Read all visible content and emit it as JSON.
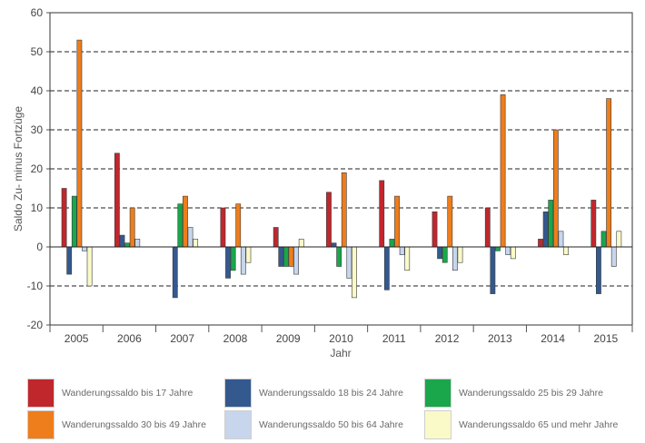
{
  "chart_data": {
    "type": "bar",
    "title": "",
    "xlabel": "Jahr",
    "ylabel": "Saldo Zu- minus Fortzüge",
    "ylim": [
      -20,
      60
    ],
    "yticks": [
      -20,
      -10,
      0,
      10,
      20,
      30,
      40,
      50,
      60
    ],
    "grid": "dashed horizontal",
    "legend_position": "bottom",
    "categories": [
      "2005",
      "2006",
      "2007",
      "2008",
      "2009",
      "2010",
      "2011",
      "2012",
      "2013",
      "2014",
      "2015"
    ],
    "series": [
      {
        "name": "Wanderungssaldo bis 17 Jahre",
        "color": "#c0272d",
        "values": [
          15,
          24,
          0,
          10,
          5,
          14,
          17,
          9,
          10,
          2,
          12
        ]
      },
      {
        "name": "Wanderungssaldo 18 bis 24 Jahre",
        "color": "#34598f",
        "values": [
          -7,
          3,
          -13,
          -8,
          -5,
          1,
          -11,
          -3,
          -12,
          9,
          -12
        ]
      },
      {
        "name": "Wanderungssaldo 25 bis 29 Jahre",
        "color": "#1aa64b",
        "values": [
          13,
          1,
          11,
          -6,
          -5,
          -5,
          2,
          -4,
          -1,
          12,
          4
        ]
      },
      {
        "name": "Wanderungssaldo 30 bis 49 Jahre",
        "color": "#ee7d1b",
        "values": [
          53,
          10,
          13,
          11,
          -5,
          19,
          13,
          13,
          39,
          30,
          38
        ]
      },
      {
        "name": "Wanderungssaldo 50 bis 64 Jahre",
        "color": "#c7d6ec",
        "values": [
          -1,
          2,
          5,
          -7,
          -7,
          -8,
          -2,
          -6,
          -2,
          4,
          -5
        ]
      },
      {
        "name": "Wanderungssaldo 65 und mehr Jahre",
        "color": "#fafac8",
        "values": [
          -10,
          0,
          2,
          -4,
          2,
          -13,
          -6,
          -4,
          -3,
          -2,
          4
        ]
      }
    ]
  }
}
